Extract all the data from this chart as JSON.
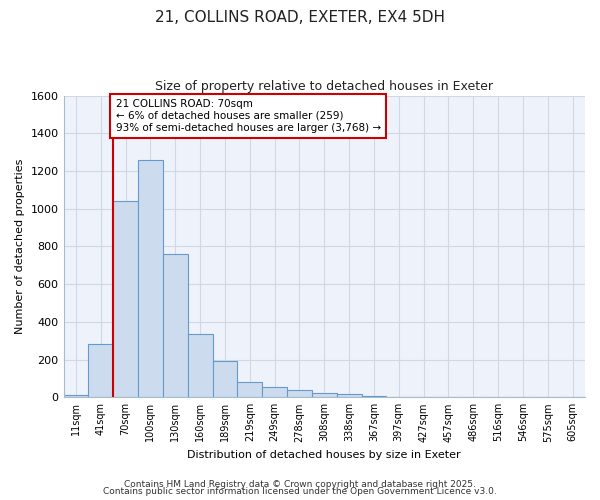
{
  "title1": "21, COLLINS ROAD, EXETER, EX4 5DH",
  "title2": "Size of property relative to detached houses in Exeter",
  "xlabel": "Distribution of detached houses by size in Exeter",
  "ylabel": "Number of detached properties",
  "categories": [
    "11sqm",
    "41sqm",
    "70sqm",
    "100sqm",
    "130sqm",
    "160sqm",
    "189sqm",
    "219sqm",
    "249sqm",
    "278sqm",
    "308sqm",
    "338sqm",
    "367sqm",
    "397sqm",
    "427sqm",
    "457sqm",
    "486sqm",
    "516sqm",
    "546sqm",
    "575sqm",
    "605sqm"
  ],
  "values": [
    10,
    280,
    1040,
    1260,
    760,
    335,
    190,
    82,
    55,
    40,
    25,
    18,
    5,
    0,
    2,
    0,
    0,
    0,
    0,
    0,
    0
  ],
  "bar_color": "#ccdcee",
  "bar_edge_color": "#6699cc",
  "redline_x": 2.0,
  "annotation_text": "21 COLLINS ROAD: 70sqm\n← 6% of detached houses are smaller (259)\n93% of semi-detached houses are larger (3,768) →",
  "annotation_box_color": "#ffffff",
  "annotation_box_edge": "#cc0000",
  "ylim": [
    0,
    1600
  ],
  "yticks": [
    0,
    200,
    400,
    600,
    800,
    1000,
    1200,
    1400,
    1600
  ],
  "grid_color": "#d0d8e8",
  "bg_color": "#eef2fb",
  "fig_color": "#ffffff",
  "footer1": "Contains HM Land Registry data © Crown copyright and database right 2025.",
  "footer2": "Contains public sector information licensed under the Open Government Licence v3.0."
}
